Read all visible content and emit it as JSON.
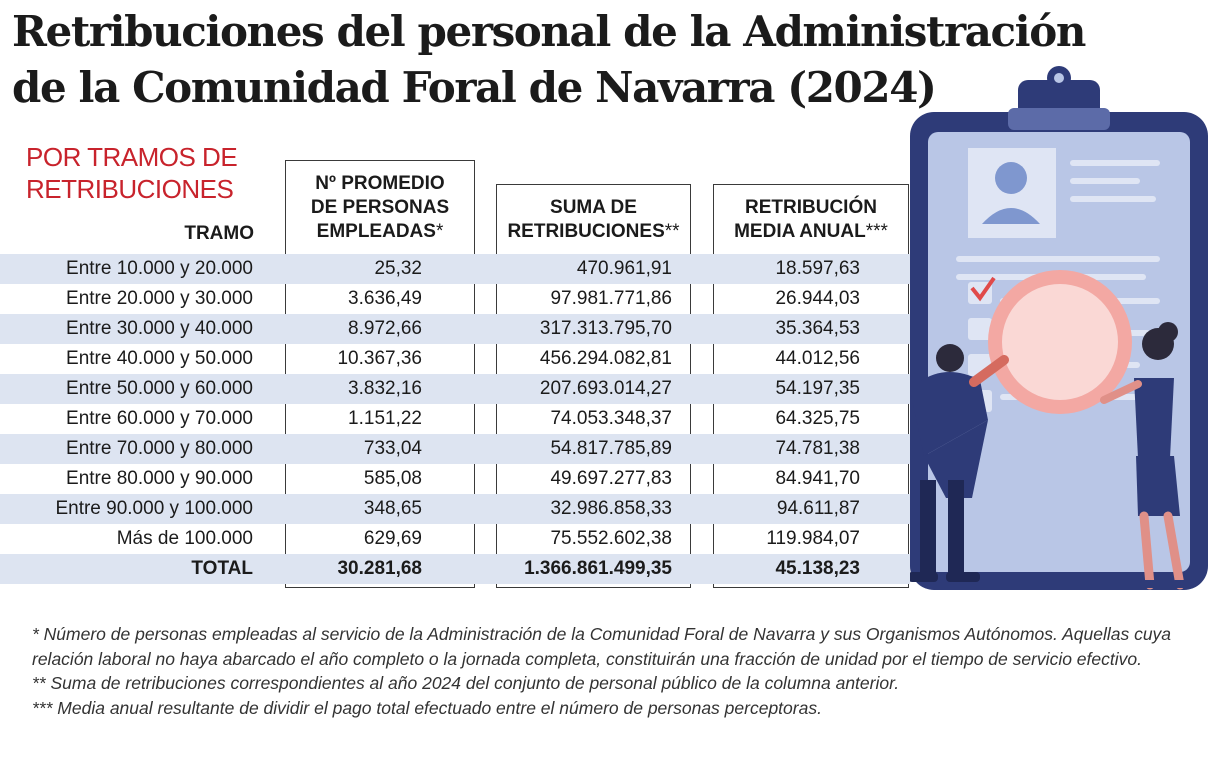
{
  "title": {
    "line1": "Retribuciones del personal de la Administración",
    "line2": "de la Comunidad Foral de Navarra (2024)"
  },
  "subtitle": {
    "line1": "POR TRAMOS DE",
    "line2": "RETRIBUCIONES"
  },
  "chart_data": {
    "type": "table",
    "title": "Retribuciones del personal de la Administración de la Comunidad Foral de Navarra (2024)",
    "subtitle": "POR TRAMOS DE RETRIBUCIONES",
    "columns": {
      "tramo": {
        "label": "TRAMO"
      },
      "personas": {
        "line1": "Nº PROMEDIO",
        "line2": "DE PERSONAS",
        "line3": "EMPLEADAS",
        "mark": "*"
      },
      "suma": {
        "line1": "SUMA DE",
        "line2": "RETRIBUCIONES",
        "mark": "**"
      },
      "media": {
        "line1": "RETRIBUCIÓN",
        "line2": "MEDIA ANUAL",
        "mark": "***"
      }
    },
    "rows": [
      {
        "tramo": "Entre 10.000 y 20.000",
        "personas": "25,32",
        "suma": "470.961,91",
        "media": "18.597,63"
      },
      {
        "tramo": "Entre 20.000 y 30.000",
        "personas": "3.636,49",
        "suma": "97.981.771,86",
        "media": "26.944,03"
      },
      {
        "tramo": "Entre 30.000 y 40.000",
        "personas": "8.972,66",
        "suma": "317.313.795,70",
        "media": "35.364,53"
      },
      {
        "tramo": "Entre 40.000 y 50.000",
        "personas": "10.367,36",
        "suma": "456.294.082,81",
        "media": "44.012,56"
      },
      {
        "tramo": "Entre 50.000 y 60.000",
        "personas": "3.832,16",
        "suma": "207.693.014,27",
        "media": "54.197,35"
      },
      {
        "tramo": "Entre 60.000 y 70.000",
        "personas": "1.151,22",
        "suma": "74.053.348,37",
        "media": "64.325,75"
      },
      {
        "tramo": "Entre 70.000 y 80.000",
        "personas": "733,04",
        "suma": "54.817.785,89",
        "media": "74.781,38"
      },
      {
        "tramo": "Entre 80.000 y 90.000",
        "personas": "585,08",
        "suma": "49.697.277,83",
        "media": "84.941,70"
      },
      {
        "tramo": "Entre 90.000 y 100.000",
        "personas": "348,65",
        "suma": "32.986.858,33",
        "media": "94.611,87"
      },
      {
        "tramo": "Más de 100.000",
        "personas": "629,69",
        "suma": "75.552.602,38",
        "media": "119.984,07"
      },
      {
        "tramo": "TOTAL",
        "personas": "30.281,68",
        "suma": "1.366.861.499,35",
        "media": "45.138,23"
      }
    ]
  },
  "notes": [
    "* Número de personas empleadas al servicio de la Administración de la Comunidad Foral de Navarra y sus Organismos Autónomos. Aquellas cuya relación laboral no haya abarcado el año completo o la jornada completa, constituirán una fracción de unidad por el tiempo de servicio efectivo.",
    "** Suma de retribuciones correspondientes al año 2024 del conjunto de personal público de la columna anterior.",
    "*** Media anual resultante de dividir el pago total efectuado entre el número de personas perceptoras."
  ],
  "colors": {
    "title": "#1b1b1b",
    "subtitle": "#c8232c",
    "row_band": "#dde4f1",
    "clipboard_frame": "#2e3b78",
    "clipboard_paper": "#b9c6e6",
    "magnifier_lens": "#f3a8a3"
  },
  "illustration": {
    "icons": [
      "clipboard-icon",
      "user-photo-icon",
      "checkmark-icon",
      "magnifier-icon",
      "man-figure",
      "woman-figure"
    ]
  }
}
